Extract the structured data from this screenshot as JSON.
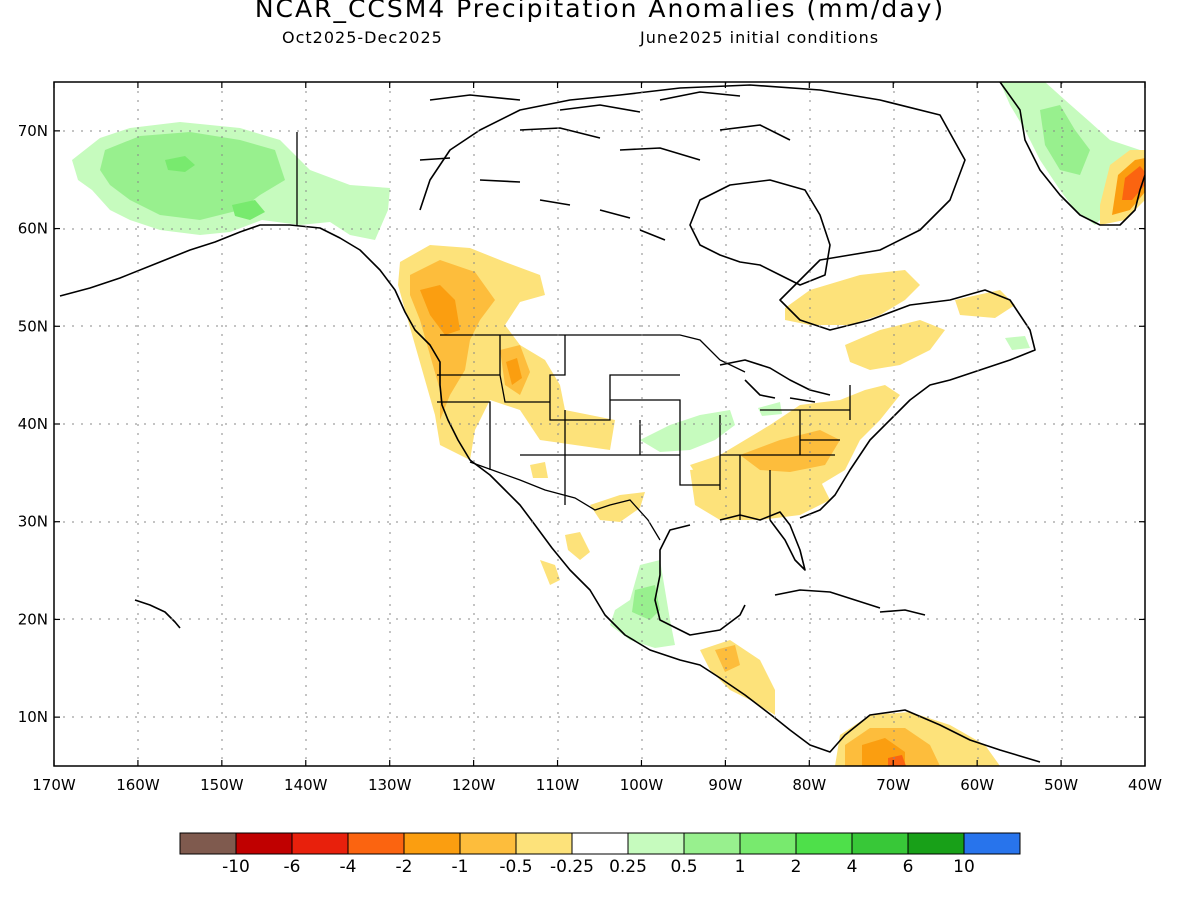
{
  "header": {
    "title": "NCAR_CCSM4 Precipitation Anomalies (mm/day)",
    "period": "Oct2025-Dec2025",
    "initial_conditions": "June2025 initial conditions"
  },
  "map": {
    "lat_labels": [
      "70N",
      "60N",
      "50N",
      "40N",
      "30N",
      "20N",
      "10N"
    ],
    "lon_labels": [
      "170W",
      "160W",
      "150W",
      "140W",
      "130W",
      "120W",
      "110W",
      "100W",
      "90W",
      "80W",
      "70W",
      "60W",
      "50W",
      "40W"
    ],
    "lon_range": [
      -170,
      -40
    ],
    "lat_range": [
      5,
      75
    ]
  },
  "legend": {
    "colors": [
      "#7f5a4e",
      "#c00000",
      "#e8200c",
      "#fb6410",
      "#fb9e10",
      "#fdbd3c",
      "#fde27a",
      "#ffffff",
      "#c6fbbe",
      "#98f08e",
      "#78ea6e",
      "#4ee04a",
      "#38c838",
      "#18a018",
      "#2874ec"
    ],
    "labels": [
      "-10",
      "-6",
      "-4",
      "-2",
      "-1",
      "-0.5",
      "-0.25",
      "0.25",
      "0.5",
      "1",
      "2",
      "4",
      "6",
      "10"
    ]
  }
}
